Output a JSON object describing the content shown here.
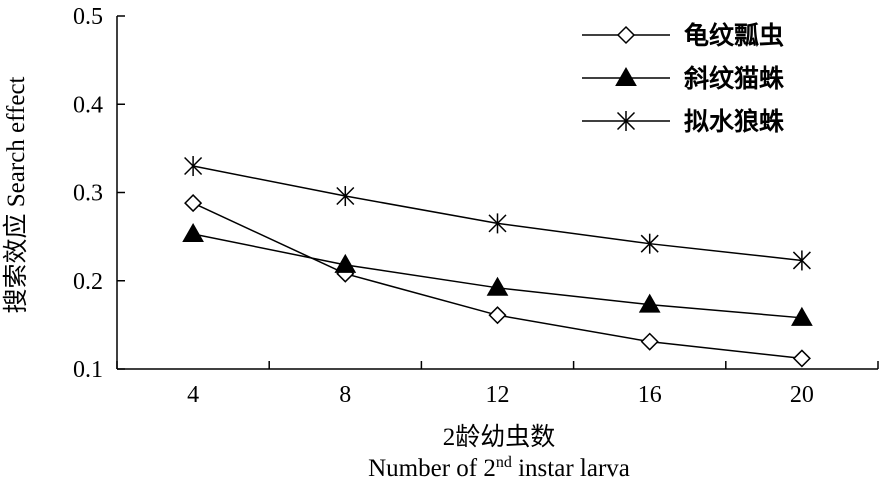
{
  "chart_data": {
    "type": "line",
    "x": [
      4,
      8,
      12,
      16,
      20
    ],
    "x_tick_labels": [
      "4",
      "8",
      "12",
      "16",
      "20"
    ],
    "xlim": [
      2,
      22
    ],
    "ylim": [
      0.1,
      0.5
    ],
    "y_tick_labels": [
      "0.1",
      "0.2",
      "0.3",
      "0.4",
      "0.5"
    ],
    "y_ticks": [
      0.1,
      0.2,
      0.3,
      0.4,
      0.5
    ],
    "xlabel_cn": "2龄幼虫数",
    "xlabel_en_pre": "Number of 2",
    "xlabel_en_sup": "nd",
    "xlabel_en_post": " instar larva",
    "ylabel": "搜索效应 Search effect",
    "grid": false,
    "legend_position": "top-right",
    "series": [
      {
        "name": "龟纹瓢虫",
        "marker": "diamond-open",
        "values": [
          0.288,
          0.208,
          0.161,
          0.131,
          0.112
        ]
      },
      {
        "name": "斜纹猫蛛",
        "marker": "triangle-filled",
        "values": [
          0.253,
          0.218,
          0.192,
          0.173,
          0.158
        ]
      },
      {
        "name": "拟水狼蛛",
        "marker": "asterisk",
        "values": [
          0.33,
          0.296,
          0.265,
          0.242,
          0.223
        ]
      }
    ]
  }
}
